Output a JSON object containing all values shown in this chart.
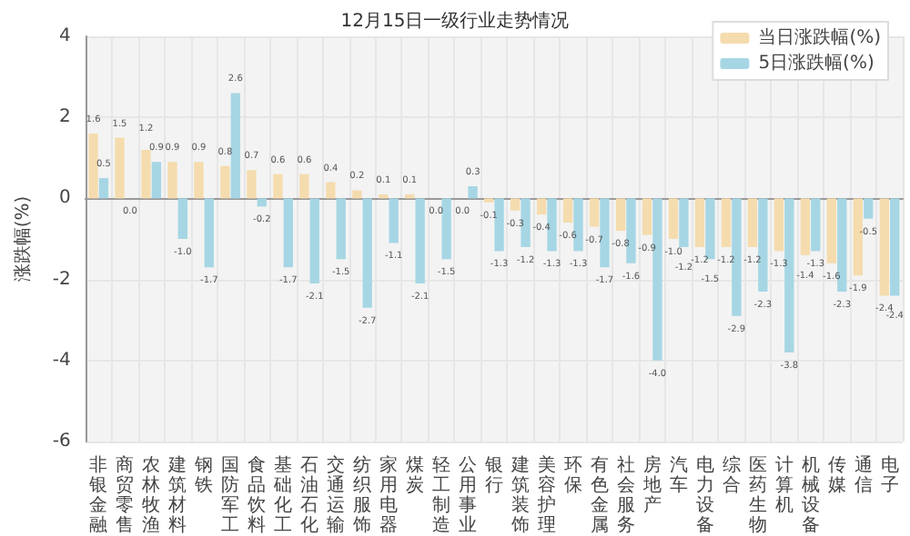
{
  "chart_data": {
    "type": "bar",
    "title": "12月15日一级行业走势情况",
    "ylabel": "涨跌幅(%)",
    "categories": [
      "非银金融",
      "商贸零售",
      "农林牧渔",
      "建筑材料",
      "钢铁",
      "国防军工",
      "食品饮料",
      "基础化工",
      "石油石化",
      "交通运输",
      "纺织服饰",
      "家用电器",
      "煤炭",
      "轻工制造",
      "公用事业",
      "银行",
      "建筑装饰",
      "美容护理",
      "环保",
      "有色金属",
      "社会服务",
      "房地产",
      "汽车",
      "电力设备",
      "综合",
      "医药生物",
      "计算机",
      "机械设备",
      "传媒",
      "通信",
      "电子"
    ],
    "series": [
      {
        "name": "当日涨跌幅(%)",
        "color": "#f5dcae",
        "values": [
          1.6,
          1.5,
          1.2,
          0.9,
          0.9,
          0.8,
          0.7,
          0.6,
          0.6,
          0.4,
          0.2,
          0.1,
          0.1,
          0.0,
          0.0,
          -0.1,
          -0.3,
          -0.4,
          -0.6,
          -0.7,
          -0.8,
          -0.9,
          -1.0,
          -1.2,
          -1.2,
          -1.2,
          -1.3,
          -1.4,
          -1.6,
          -1.9,
          -2.4
        ],
        "value_labels": [
          "1.6",
          "1.5",
          "1.2",
          "0.9",
          "0.9",
          "0.8",
          "0.7",
          "0.6",
          "0.6",
          "0.4",
          "0.2",
          "0.1",
          "0.1",
          "0.0",
          "0.0",
          "-0.1",
          "-0.3",
          "-0.4",
          "-0.6",
          "-0.7",
          "-0.8",
          "-0.9",
          "-1.0",
          "-1.2",
          "-1.2",
          "-1.2",
          "-1.3",
          "-1.4",
          "-1.6",
          "-1.9",
          "-2.4"
        ]
      },
      {
        "name": "5日涨跌幅(%)",
        "color": "#a6d6e4",
        "values": [
          0.5,
          0.0,
          0.9,
          -1.0,
          -1.7,
          2.6,
          -0.2,
          -1.7,
          -2.1,
          -1.5,
          -2.7,
          -1.1,
          -2.1,
          -1.5,
          0.3,
          -1.3,
          -1.2,
          -1.3,
          -1.3,
          -1.7,
          -1.6,
          -4.0,
          -1.2,
          -1.5,
          -2.9,
          -2.3,
          -3.8,
          -1.3,
          -2.3,
          -0.5,
          -2.4
        ],
        "value_labels": [
          "0.5",
          "0.0",
          "0.9",
          "-1.0",
          "-1.7",
          "2.6",
          "-0.2",
          "-1.7",
          "-2.1",
          "-1.5",
          "-2.7",
          "-1.1",
          "-2.1",
          "-1.5",
          "0.3",
          "-1.3",
          "-1.2",
          "-1.3",
          "-1.3",
          "-1.7",
          "-1.6",
          "-4.0",
          "-1.2",
          "-1.5",
          "-2.9",
          "-2.3",
          "-3.8",
          "-1.3",
          "-2.3",
          "-0.5",
          "-2.4"
        ]
      }
    ],
    "ylim": [
      -6,
      4
    ],
    "yticks": [
      -6,
      -4,
      -2,
      0,
      2,
      4
    ],
    "grid": true,
    "legend": "top right"
  }
}
